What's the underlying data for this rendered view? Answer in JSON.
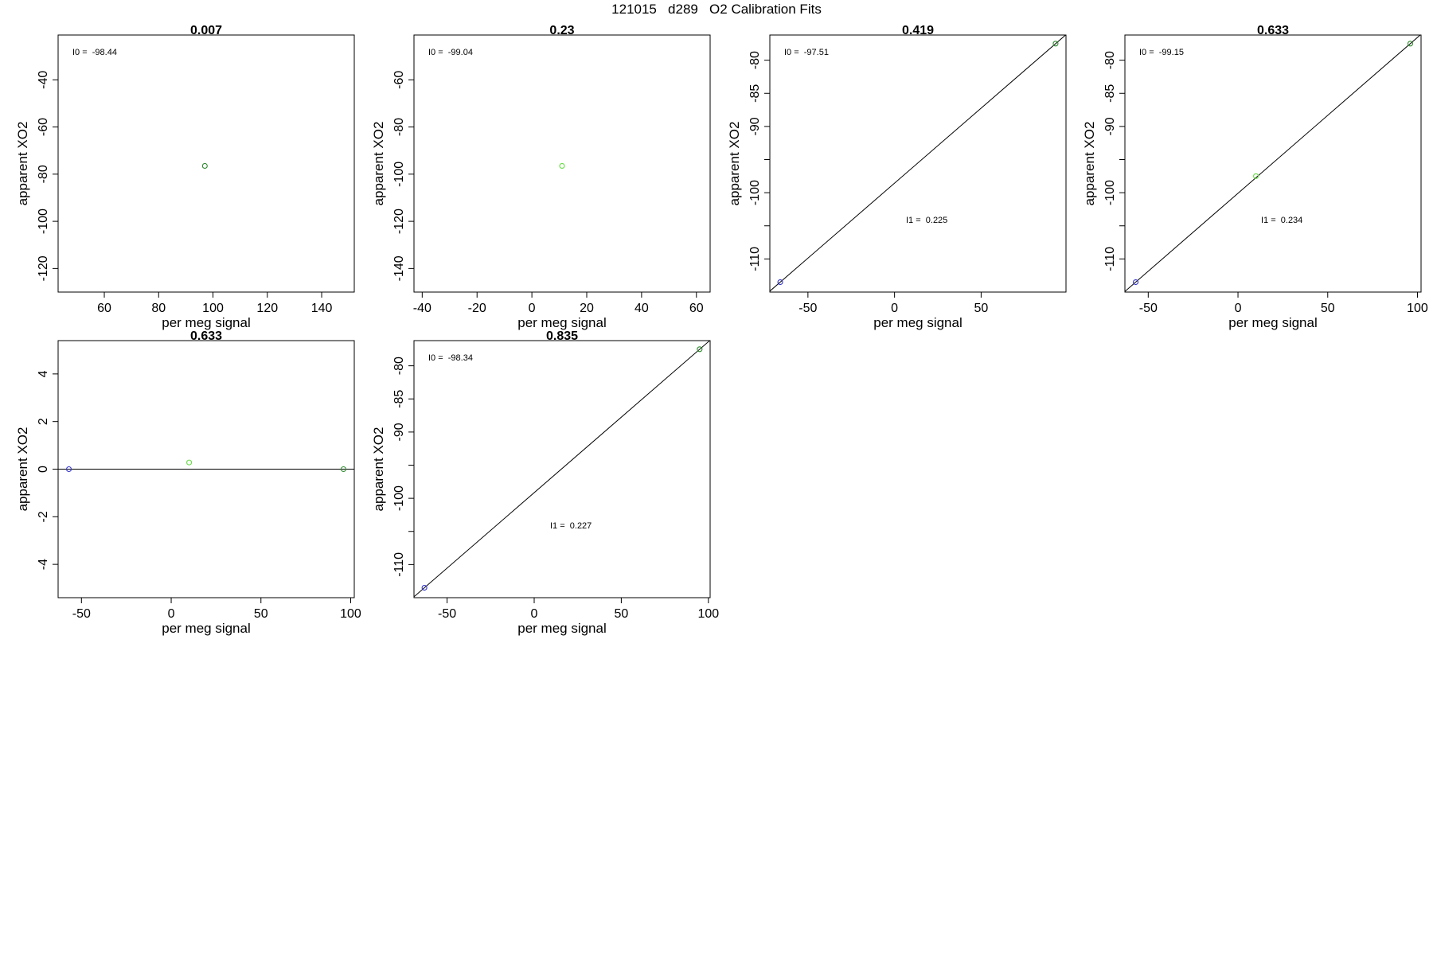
{
  "page_title": "121015   d289   O2 Calibration Fits",
  "chart_data": [
    {
      "type": "scatter",
      "title": "0.007",
      "xlabel": "per meg signal",
      "ylabel": "apparent XO2",
      "xlim": [
        43,
        152
      ],
      "ylim": [
        -130,
        -21
      ],
      "xticks": [
        60,
        80,
        100,
        120,
        140
      ],
      "yticks": [
        -40,
        -60,
        -80,
        -100,
        -120
      ],
      "points": [
        {
          "x": 97,
          "y": -76.5,
          "color": "#2e8b2e"
        }
      ],
      "fit_line": null,
      "annotations": [
        {
          "text": "I0 =  -98.44",
          "pos": "top-left"
        }
      ]
    },
    {
      "type": "scatter",
      "title": "0.23",
      "xlabel": "per meg signal",
      "ylabel": "apparent XO2",
      "xlim": [
        -43,
        65
      ],
      "ylim": [
        -150,
        -41
      ],
      "xticks": [
        -40,
        -20,
        0,
        20,
        40,
        60
      ],
      "yticks": [
        -60,
        -80,
        -100,
        -120,
        -140
      ],
      "points": [
        {
          "x": 11,
          "y": -96.5,
          "color": "#66dd44"
        }
      ],
      "fit_line": null,
      "annotations": [
        {
          "text": "I0 =  -99.04",
          "pos": "top-left"
        }
      ]
    },
    {
      "type": "scatter",
      "title": "0.419",
      "xlabel": "per meg signal",
      "ylabel": "apparent XO2",
      "xlim": [
        -72,
        99
      ],
      "ylim": [
        -115,
        -76.2
      ],
      "xticks": [
        -50,
        0,
        50
      ],
      "yticks": [
        -80,
        -85,
        -90,
        -95,
        -100,
        -105,
        -110
      ],
      "ytick_labels": [
        "-80",
        "-85",
        "-90",
        "",
        "-100",
        "",
        "-110"
      ],
      "points": [
        {
          "x": -66,
          "y": -113.5,
          "color": "#3333cc"
        },
        {
          "x": 93,
          "y": -77.5,
          "color": "#2e8b2e"
        }
      ],
      "fit_line": {
        "slope": 0.2264,
        "intercept": -98.56
      },
      "annotations": [
        {
          "text": "I0 =  -97.51",
          "pos": "top-left"
        },
        {
          "text": "I1 =  0.225",
          "pos": "lower-middle"
        }
      ]
    },
    {
      "type": "scatter",
      "title": "0.633",
      "xlabel": "per meg signal",
      "ylabel": "apparent XO2",
      "xlim": [
        -63,
        102
      ],
      "ylim": [
        -115,
        -76.2
      ],
      "xticks": [
        -50,
        0,
        50,
        100
      ],
      "yticks": [
        -80,
        -85,
        -90,
        -95,
        -100,
        -105,
        -110
      ],
      "ytick_labels": [
        "-80",
        "-85",
        "-90",
        "",
        "-100",
        "",
        "-110"
      ],
      "points": [
        {
          "x": -57,
          "y": -113.5,
          "color": "#3333cc"
        },
        {
          "x": 10,
          "y": -97.5,
          "color": "#66dd44"
        },
        {
          "x": 96,
          "y": -77.5,
          "color": "#2e8b2e"
        }
      ],
      "fit_line": {
        "slope": 0.2353,
        "intercept": -100.09
      },
      "annotations": [
        {
          "text": "I0 =  -99.15",
          "pos": "top-left"
        },
        {
          "text": "I1 =  0.234",
          "pos": "lower-middle"
        }
      ]
    },
    {
      "type": "scatter",
      "title": "0.633",
      "xlabel": "per meg signal",
      "ylabel": "apparent XO2",
      "xlim": [
        -63,
        102
      ],
      "ylim": [
        -5.4,
        5.4
      ],
      "xticks": [
        -50,
        0,
        50,
        100
      ],
      "yticks": [
        4,
        2,
        0,
        -2,
        -4
      ],
      "points": [
        {
          "x": -57,
          "y": 0,
          "color": "#3333cc"
        },
        {
          "x": 10,
          "y": 0.28,
          "color": "#66dd44"
        },
        {
          "x": 96,
          "y": 0,
          "color": "#2e8b2e"
        }
      ],
      "fit_line": {
        "slope": 0,
        "intercept": 0
      },
      "annotations": []
    },
    {
      "type": "scatter",
      "title": "0.835",
      "xlabel": "per meg signal",
      "ylabel": "apparent XO2",
      "xlim": [
        -69,
        101
      ],
      "ylim": [
        -115,
        -76.2
      ],
      "xticks": [
        -50,
        0,
        50,
        100
      ],
      "yticks": [
        -80,
        -85,
        -90,
        -95,
        -100,
        -105,
        -110
      ],
      "ytick_labels": [
        "-80",
        "-85",
        "-90",
        "",
        "-100",
        "",
        "-110"
      ],
      "points": [
        {
          "x": -63,
          "y": -113.5,
          "color": "#3333cc"
        },
        {
          "x": 95,
          "y": -77.5,
          "color": "#2e8b2e"
        }
      ],
      "fit_line": {
        "slope": 0.2278,
        "intercept": -99.15
      },
      "annotations": [
        {
          "text": "I0 =  -98.34",
          "pos": "top-left"
        },
        {
          "text": "I1 =  0.227",
          "pos": "lower-middle"
        }
      ]
    }
  ]
}
